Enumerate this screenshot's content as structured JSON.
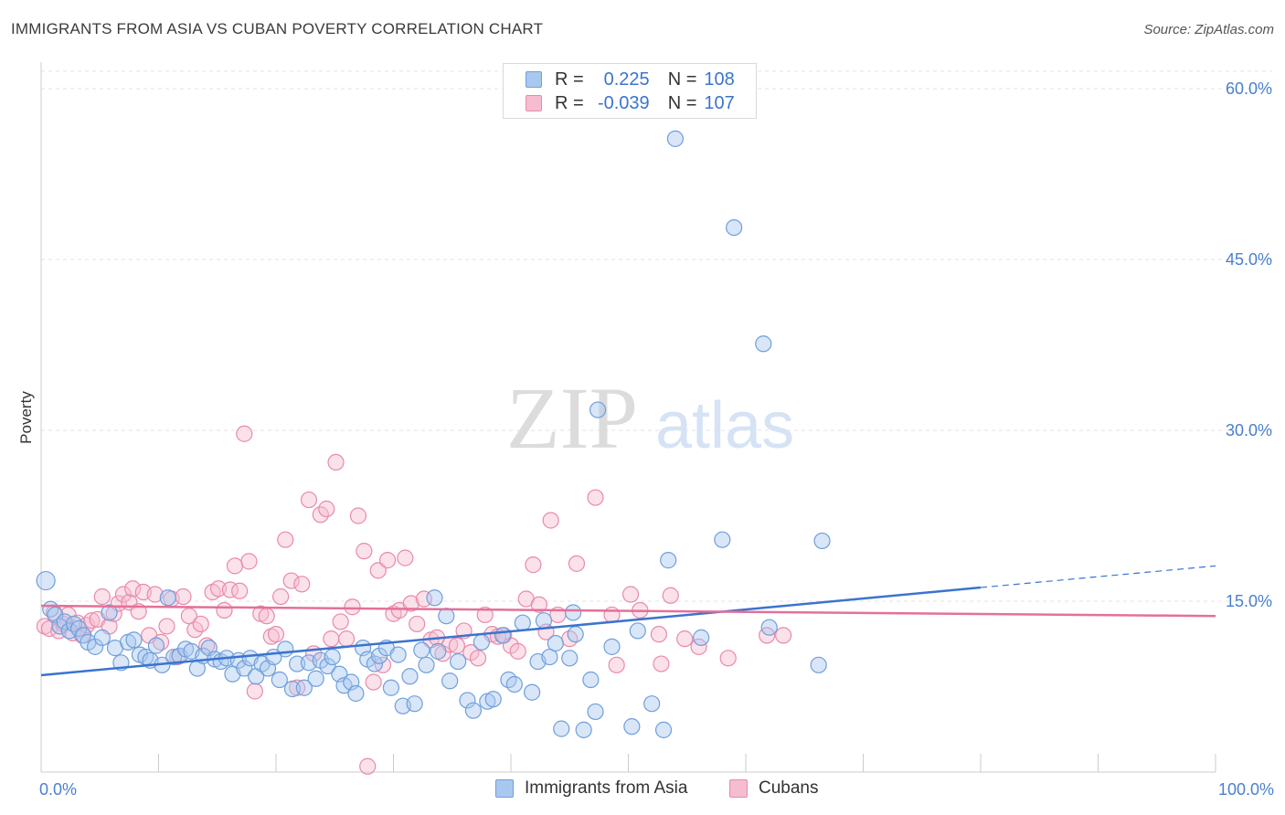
{
  "header": {
    "title": "IMMIGRANTS FROM ASIA VS CUBAN POVERTY CORRELATION CHART",
    "source": "Source: ZipAtlas.com"
  },
  "watermark": {
    "zip": "ZIP",
    "atlas": "atlas"
  },
  "legend_top": {
    "rows": [
      {
        "r_label": "R =",
        "r_value": "0.225",
        "n_label": "N =",
        "n_value": "108"
      },
      {
        "r_label": "R =",
        "r_value": "-0.039",
        "n_label": "N =",
        "n_value": "107"
      }
    ]
  },
  "legend_bottom": {
    "items": [
      {
        "label": "Immigrants from Asia"
      },
      {
        "label": "Cubans"
      }
    ]
  },
  "colors": {
    "blue_fill": "#a9c8f0",
    "blue_stroke": "#6f9fdc",
    "blue_line": "#3a74cf",
    "pink_fill": "#f6bcd0",
    "pink_stroke": "#e98aaa",
    "pink_line": "#e4709a",
    "grid": "#e3e3e3",
    "axis_text": "#4a7fd0"
  },
  "chart_data": {
    "type": "scatter",
    "title": "IMMIGRANTS FROM ASIA VS CUBAN POVERTY CORRELATION CHART",
    "xlabel": "",
    "ylabel": "Poverty",
    "xlim": [
      0,
      100
    ],
    "ylim": [
      0,
      60
    ],
    "x_tick_labels": [
      "0.0%",
      "100.0%"
    ],
    "y_ticks": [
      15,
      30,
      45,
      60
    ],
    "y_tick_labels": [
      "15.0%",
      "30.0%",
      "45.0%",
      "60.0%"
    ],
    "grid": true,
    "legend_position": "top-center",
    "series": [
      {
        "name": "Immigrants from Asia",
        "r": 0.225,
        "n": 108,
        "trend": {
          "x0": 0,
          "y0": 8.5,
          "x1": 80,
          "y1": 16.2,
          "dashed_to_x": 100,
          "dashed_to_y": 18.1
        },
        "points": [
          [
            0.4,
            16.8
          ],
          [
            0.8,
            14.3
          ],
          [
            1.2,
            13.8
          ],
          [
            1.6,
            12.8
          ],
          [
            2.0,
            13.2
          ],
          [
            2.4,
            12.4
          ],
          [
            2.8,
            13.0
          ],
          [
            3.2,
            12.6
          ],
          [
            3.6,
            12.0
          ],
          [
            4.0,
            11.4
          ],
          [
            4.6,
            11.0
          ],
          [
            5.2,
            11.8
          ],
          [
            5.8,
            14.0
          ],
          [
            6.3,
            10.9
          ],
          [
            6.8,
            9.6
          ],
          [
            7.4,
            11.4
          ],
          [
            7.9,
            11.6
          ],
          [
            8.4,
            10.3
          ],
          [
            8.9,
            10.1
          ],
          [
            9.3,
            9.8
          ],
          [
            9.8,
            11.1
          ],
          [
            10.3,
            9.4
          ],
          [
            10.8,
            15.3
          ],
          [
            11.3,
            10.1
          ],
          [
            11.8,
            10.2
          ],
          [
            12.3,
            10.8
          ],
          [
            12.8,
            10.6
          ],
          [
            13.3,
            9.1
          ],
          [
            13.8,
            10.2
          ],
          [
            14.3,
            10.9
          ],
          [
            14.8,
            9.9
          ],
          [
            15.3,
            9.7
          ],
          [
            15.8,
            10.0
          ],
          [
            16.3,
            8.6
          ],
          [
            16.8,
            9.8
          ],
          [
            17.3,
            9.1
          ],
          [
            17.8,
            10.0
          ],
          [
            18.3,
            8.4
          ],
          [
            18.8,
            9.5
          ],
          [
            19.3,
            9.1
          ],
          [
            19.8,
            10.1
          ],
          [
            20.3,
            8.1
          ],
          [
            20.8,
            10.8
          ],
          [
            21.4,
            7.3
          ],
          [
            21.8,
            9.5
          ],
          [
            22.4,
            7.4
          ],
          [
            22.8,
            9.6
          ],
          [
            23.4,
            8.2
          ],
          [
            23.8,
            9.8
          ],
          [
            24.4,
            9.3
          ],
          [
            24.8,
            10.1
          ],
          [
            25.4,
            8.6
          ],
          [
            25.8,
            7.6
          ],
          [
            26.4,
            7.9
          ],
          [
            26.8,
            6.9
          ],
          [
            27.4,
            10.9
          ],
          [
            27.8,
            9.9
          ],
          [
            28.4,
            9.5
          ],
          [
            28.8,
            10.2
          ],
          [
            29.4,
            10.9
          ],
          [
            29.8,
            7.4
          ],
          [
            30.4,
            10.3
          ],
          [
            30.8,
            5.8
          ],
          [
            31.4,
            8.4
          ],
          [
            31.8,
            6.0
          ],
          [
            32.4,
            10.7
          ],
          [
            32.8,
            9.4
          ],
          [
            33.5,
            15.3
          ],
          [
            33.8,
            10.6
          ],
          [
            34.5,
            13.7
          ],
          [
            34.8,
            8.0
          ],
          [
            35.5,
            9.7
          ],
          [
            36.3,
            6.3
          ],
          [
            36.8,
            5.4
          ],
          [
            37.5,
            11.4
          ],
          [
            38.0,
            6.2
          ],
          [
            38.5,
            6.4
          ],
          [
            39.3,
            12.0
          ],
          [
            39.8,
            8.1
          ],
          [
            40.3,
            7.7
          ],
          [
            41.0,
            13.1
          ],
          [
            41.8,
            7.0
          ],
          [
            42.3,
            9.7
          ],
          [
            42.8,
            13.3
          ],
          [
            43.3,
            10.1
          ],
          [
            43.8,
            11.3
          ],
          [
            44.3,
            3.8
          ],
          [
            45.0,
            10.0
          ],
          [
            45.5,
            12.1
          ],
          [
            46.2,
            3.7
          ],
          [
            46.8,
            8.1
          ],
          [
            47.2,
            5.3
          ],
          [
            47.4,
            31.8
          ],
          [
            48.6,
            11.0
          ],
          [
            50.3,
            4.0
          ],
          [
            50.8,
            12.4
          ],
          [
            52.0,
            6.0
          ],
          [
            53.0,
            3.7
          ],
          [
            54.0,
            55.6
          ],
          [
            53.4,
            18.6
          ],
          [
            56.2,
            11.8
          ],
          [
            58.0,
            20.4
          ],
          [
            59.0,
            47.8
          ],
          [
            61.5,
            37.6
          ],
          [
            62.0,
            12.7
          ],
          [
            66.5,
            20.3
          ],
          [
            66.2,
            9.4
          ],
          [
            45.3,
            14.0
          ]
        ]
      },
      {
        "name": "Cubans",
        "r": -0.039,
        "n": 107,
        "trend": {
          "x0": 0,
          "y0": 14.6,
          "x1": 100,
          "y1": 13.7
        },
        "points": [
          [
            0.3,
            12.8
          ],
          [
            0.7,
            12.6
          ],
          [
            1.1,
            14.0
          ],
          [
            1.5,
            12.4
          ],
          [
            1.9,
            13.0
          ],
          [
            2.3,
            13.8
          ],
          [
            2.7,
            12.2
          ],
          [
            3.1,
            13.1
          ],
          [
            3.5,
            12.0
          ],
          [
            3.9,
            12.9
          ],
          [
            4.3,
            13.3
          ],
          [
            4.8,
            13.4
          ],
          [
            5.2,
            15.4
          ],
          [
            5.8,
            12.8
          ],
          [
            6.2,
            13.9
          ],
          [
            6.6,
            14.8
          ],
          [
            7.0,
            15.6
          ],
          [
            7.5,
            14.9
          ],
          [
            7.8,
            16.1
          ],
          [
            8.3,
            14.1
          ],
          [
            8.7,
            15.8
          ],
          [
            9.2,
            12.0
          ],
          [
            9.7,
            15.6
          ],
          [
            10.2,
            11.4
          ],
          [
            10.7,
            12.8
          ],
          [
            11.1,
            15.2
          ],
          [
            11.6,
            10.1
          ],
          [
            12.1,
            15.4
          ],
          [
            12.6,
            13.7
          ],
          [
            13.1,
            12.5
          ],
          [
            13.6,
            13.0
          ],
          [
            14.1,
            11.1
          ],
          [
            14.6,
            15.8
          ],
          [
            15.1,
            16.1
          ],
          [
            15.6,
            14.2
          ],
          [
            16.1,
            16.0
          ],
          [
            16.5,
            18.1
          ],
          [
            16.9,
            15.9
          ],
          [
            17.3,
            29.7
          ],
          [
            17.7,
            18.5
          ],
          [
            18.2,
            7.1
          ],
          [
            18.7,
            13.9
          ],
          [
            19.2,
            13.7
          ],
          [
            19.6,
            11.9
          ],
          [
            20.0,
            12.1
          ],
          [
            20.4,
            15.4
          ],
          [
            20.8,
            20.4
          ],
          [
            21.3,
            16.8
          ],
          [
            21.8,
            7.4
          ],
          [
            22.2,
            16.5
          ],
          [
            22.8,
            23.9
          ],
          [
            23.2,
            10.4
          ],
          [
            23.8,
            22.6
          ],
          [
            24.3,
            23.1
          ],
          [
            24.7,
            11.7
          ],
          [
            25.1,
            27.2
          ],
          [
            25.5,
            13.2
          ],
          [
            26.0,
            11.7
          ],
          [
            26.5,
            14.5
          ],
          [
            27.0,
            22.5
          ],
          [
            27.5,
            19.4
          ],
          [
            27.8,
            0.5
          ],
          [
            28.3,
            7.9
          ],
          [
            28.7,
            17.7
          ],
          [
            29.1,
            9.4
          ],
          [
            29.5,
            18.6
          ],
          [
            30.0,
            13.9
          ],
          [
            30.5,
            14.2
          ],
          [
            31.0,
            18.8
          ],
          [
            31.5,
            14.8
          ],
          [
            32.0,
            13.0
          ],
          [
            32.6,
            15.2
          ],
          [
            33.2,
            11.6
          ],
          [
            33.7,
            11.8
          ],
          [
            34.2,
            10.4
          ],
          [
            34.8,
            11.2
          ],
          [
            35.4,
            11.1
          ],
          [
            36.0,
            12.4
          ],
          [
            36.6,
            10.5
          ],
          [
            37.2,
            10.0
          ],
          [
            37.8,
            13.8
          ],
          [
            38.4,
            12.1
          ],
          [
            38.9,
            11.9
          ],
          [
            39.4,
            12.0
          ],
          [
            40.0,
            11.1
          ],
          [
            40.6,
            10.6
          ],
          [
            41.3,
            15.2
          ],
          [
            41.9,
            18.2
          ],
          [
            42.4,
            14.7
          ],
          [
            43.0,
            12.3
          ],
          [
            43.4,
            22.1
          ],
          [
            44.0,
            13.8
          ],
          [
            45.0,
            11.7
          ],
          [
            45.6,
            18.3
          ],
          [
            47.2,
            24.1
          ],
          [
            48.6,
            13.8
          ],
          [
            49.0,
            9.4
          ],
          [
            50.2,
            15.6
          ],
          [
            51.0,
            14.2
          ],
          [
            52.6,
            12.1
          ],
          [
            52.8,
            9.5
          ],
          [
            53.6,
            15.5
          ],
          [
            54.8,
            11.7
          ],
          [
            56.0,
            11.0
          ],
          [
            58.5,
            10.0
          ],
          [
            61.8,
            12.0
          ],
          [
            63.2,
            12.0
          ]
        ]
      }
    ]
  }
}
